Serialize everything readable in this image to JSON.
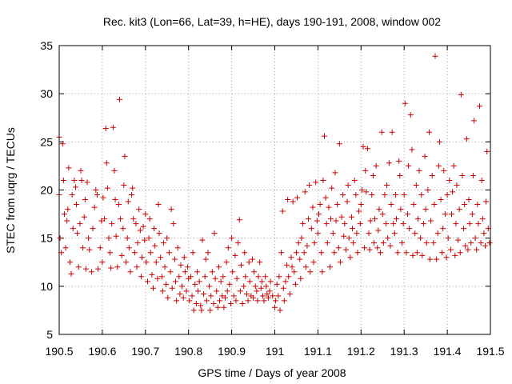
{
  "chart_data": {
    "type": "scatter",
    "title": "Rec. kit3 (Lon=66, Lat=39, h=HE), days 190-191, 2008, window 002",
    "xlabel": "GPS time / Days of year 2008",
    "ylabel": "STEC from uqrg / TECUs",
    "xlim": [
      190.5,
      191.5
    ],
    "ylim": [
      5,
      35
    ],
    "xticks": [
      "190.5",
      "190.6",
      "190.7",
      "190.8",
      "190.9",
      "191",
      "191.1",
      "191.2",
      "191.3",
      "191.4",
      "191.5"
    ],
    "yticks": [
      "5",
      "10",
      "15",
      "20",
      "25",
      "30",
      "35"
    ],
    "grid": true,
    "marker": "plus",
    "color": "#cc0000",
    "points": [
      [
        190.5,
        19.5
      ],
      [
        190.5,
        25.5
      ],
      [
        190.502,
        15.0
      ],
      [
        190.505,
        13.5
      ],
      [
        190.508,
        24.8
      ],
      [
        190.51,
        21.0
      ],
      [
        190.512,
        17.5
      ],
      [
        190.515,
        14.0
      ],
      [
        190.518,
        16.8
      ],
      [
        190.52,
        18.0
      ],
      [
        190.522,
        22.3
      ],
      [
        190.525,
        12.5
      ],
      [
        190.528,
        11.3
      ],
      [
        190.53,
        19.5
      ],
      [
        190.532,
        16.0
      ],
      [
        190.535,
        21.0
      ],
      [
        190.538,
        20.3
      ],
      [
        190.54,
        18.5
      ],
      [
        190.542,
        15.5
      ],
      [
        190.545,
        12.0
      ],
      [
        190.548,
        16.5
      ],
      [
        190.55,
        22.0
      ],
      [
        190.552,
        21.0
      ],
      [
        190.555,
        14.0
      ],
      [
        190.558,
        17.2
      ],
      [
        190.56,
        19.0
      ],
      [
        190.562,
        11.8
      ],
      [
        190.565,
        20.8
      ],
      [
        190.568,
        15.0
      ],
      [
        190.57,
        13.8
      ],
      [
        190.575,
        11.5
      ],
      [
        190.578,
        16.0
      ],
      [
        190.582,
        18.2
      ],
      [
        190.585,
        20.0
      ],
      [
        190.588,
        19.5
      ],
      [
        190.59,
        11.8
      ],
      [
        190.595,
        14.0
      ],
      [
        190.598,
        16.8
      ],
      [
        190.6,
        12.5
      ],
      [
        190.602,
        19.2
      ],
      [
        190.605,
        17.0
      ],
      [
        190.608,
        26.4
      ],
      [
        190.61,
        22.8
      ],
      [
        190.612,
        20.2
      ],
      [
        190.615,
        15.0
      ],
      [
        190.618,
        13.5
      ],
      [
        190.62,
        11.9
      ],
      [
        190.622,
        16.5
      ],
      [
        190.625,
        26.5
      ],
      [
        190.628,
        22.0
      ],
      [
        190.63,
        19.0
      ],
      [
        190.632,
        15.2
      ],
      [
        190.635,
        12.0
      ],
      [
        190.638,
        18.5
      ],
      [
        190.64,
        29.4
      ],
      [
        190.642,
        17.0
      ],
      [
        190.645,
        13.2
      ],
      [
        190.648,
        16.0
      ],
      [
        190.65,
        20.5
      ],
      [
        190.652,
        23.5
      ],
      [
        190.655,
        12.5
      ],
      [
        190.658,
        15.0
      ],
      [
        190.66,
        18.8
      ],
      [
        190.662,
        14.0
      ],
      [
        190.665,
        11.5
      ],
      [
        190.668,
        19.5
      ],
      [
        190.67,
        20.2
      ],
      [
        190.672,
        17.0
      ],
      [
        190.675,
        13.5
      ],
      [
        190.678,
        16.5
      ],
      [
        190.68,
        12.0
      ],
      [
        190.682,
        14.5
      ],
      [
        190.685,
        18.0
      ],
      [
        190.688,
        15.8
      ],
      [
        190.69,
        11.0
      ],
      [
        190.692,
        13.0
      ],
      [
        190.695,
        16.2
      ],
      [
        190.698,
        14.8
      ],
      [
        190.7,
        17.5
      ],
      [
        190.702,
        12.5
      ],
      [
        190.705,
        10.5
      ],
      [
        190.708,
        15.0
      ],
      [
        190.71,
        17.0
      ],
      [
        190.712,
        13.5
      ],
      [
        190.715,
        11.2
      ],
      [
        190.718,
        9.8
      ],
      [
        190.72,
        16.0
      ],
      [
        190.722,
        14.2
      ],
      [
        190.725,
        12.5
      ],
      [
        190.728,
        10.8
      ],
      [
        190.73,
        18.5
      ],
      [
        190.732,
        15.5
      ],
      [
        190.735,
        13.0
      ],
      [
        190.738,
        11.0
      ],
      [
        190.74,
        9.5
      ],
      [
        190.742,
        14.5
      ],
      [
        190.745,
        12.0
      ],
      [
        190.748,
        10.2
      ],
      [
        190.75,
        15.0
      ],
      [
        190.752,
        8.8
      ],
      [
        190.755,
        13.5
      ],
      [
        190.758,
        11.5
      ],
      [
        190.76,
        18.0
      ],
      [
        190.762,
        9.8
      ],
      [
        190.765,
        16.5
      ],
      [
        190.768,
        12.8
      ],
      [
        190.77,
        10.5
      ],
      [
        190.772,
        8.5
      ],
      [
        190.775,
        14.0
      ],
      [
        190.778,
        11.0
      ],
      [
        190.78,
        9.2
      ],
      [
        190.782,
        12.2
      ],
      [
        190.785,
        10.0
      ],
      [
        190.788,
        8.8
      ],
      [
        190.79,
        13.0
      ],
      [
        190.792,
        11.5
      ],
      [
        190.795,
        9.5
      ],
      [
        190.798,
        12.0
      ],
      [
        190.8,
        10.8
      ],
      [
        190.802,
        8.5
      ],
      [
        190.805,
        11.0
      ],
      [
        190.808,
        9.0
      ],
      [
        190.81,
        13.5
      ],
      [
        190.812,
        7.5
      ],
      [
        190.815,
        10.2
      ],
      [
        190.818,
        8.2
      ],
      [
        190.82,
        11.5
      ],
      [
        190.822,
        9.5
      ],
      [
        190.825,
        10.5
      ],
      [
        190.828,
        8.0
      ],
      [
        190.83,
        7.5
      ],
      [
        190.832,
        14.8
      ],
      [
        190.835,
        9.2
      ],
      [
        190.838,
        11.0
      ],
      [
        190.84,
        12.8
      ],
      [
        190.842,
        8.5
      ],
      [
        190.845,
        13.5
      ],
      [
        190.848,
        10.0
      ],
      [
        190.85,
        7.5
      ],
      [
        190.852,
        9.0
      ],
      [
        190.855,
        11.5
      ],
      [
        190.858,
        8.2
      ],
      [
        190.86,
        15.5
      ],
      [
        190.862,
        10.8
      ],
      [
        190.865,
        9.5
      ],
      [
        190.868,
        7.8
      ],
      [
        190.87,
        12.0
      ],
      [
        190.872,
        8.5
      ],
      [
        190.875,
        10.5
      ],
      [
        190.878,
        9.0
      ],
      [
        190.88,
        11.0
      ],
      [
        190.882,
        7.8
      ],
      [
        190.885,
        8.8
      ],
      [
        190.888,
        12.5
      ],
      [
        190.89,
        9.5
      ],
      [
        190.892,
        14.0
      ],
      [
        190.895,
        10.2
      ],
      [
        190.898,
        8.2
      ],
      [
        190.9,
        15.0
      ],
      [
        190.902,
        11.5
      ],
      [
        190.905,
        9.0
      ],
      [
        190.908,
        13.2
      ],
      [
        190.91,
        8.5
      ],
      [
        190.912,
        10.8
      ],
      [
        190.915,
        14.5
      ],
      [
        190.918,
        16.9
      ],
      [
        190.92,
        9.5
      ],
      [
        190.922,
        12.2
      ],
      [
        190.925,
        8.2
      ],
      [
        190.928,
        10.0
      ],
      [
        190.93,
        13.5
      ],
      [
        190.932,
        11.0
      ],
      [
        190.935,
        9.2
      ],
      [
        190.938,
        8.5
      ],
      [
        190.94,
        12.5
      ],
      [
        190.942,
        10.5
      ],
      [
        190.945,
        9.0
      ],
      [
        190.948,
        12.8
      ],
      [
        190.95,
        8.8
      ],
      [
        190.952,
        11.5
      ],
      [
        190.955,
        10.0
      ],
      [
        190.958,
        9.5
      ],
      [
        190.96,
        8.5
      ],
      [
        190.962,
        11.0
      ],
      [
        190.965,
        12.5
      ],
      [
        190.968,
        9.8
      ],
      [
        190.97,
        10.5
      ],
      [
        190.972,
        9.0
      ],
      [
        190.975,
        8.5
      ],
      [
        190.978,
        11.0
      ],
      [
        190.98,
        10.0
      ],
      [
        190.982,
        9.2
      ],
      [
        190.985,
        8.8
      ],
      [
        190.988,
        9.5
      ],
      [
        190.99,
        10.5
      ],
      [
        190.995,
        9.0
      ],
      [
        191.0,
        7.8
      ],
      [
        191.002,
        8.5
      ],
      [
        191.005,
        10.2
      ],
      [
        191.008,
        9.0
      ],
      [
        191.01,
        11.0
      ],
      [
        191.012,
        7.5
      ],
      [
        191.015,
        13.5
      ],
      [
        191.018,
        17.8
      ],
      [
        191.02,
        9.8
      ],
      [
        191.022,
        8.5
      ],
      [
        191.025,
        10.5
      ],
      [
        191.028,
        12.2
      ],
      [
        191.03,
        19.0
      ],
      [
        191.032,
        11.0
      ],
      [
        191.035,
        9.2
      ],
      [
        191.038,
        13.0
      ],
      [
        191.04,
        12.0
      ],
      [
        191.042,
        18.8
      ],
      [
        191.045,
        11.5
      ],
      [
        191.048,
        10.2
      ],
      [
        191.05,
        13.5
      ],
      [
        191.052,
        19.2
      ],
      [
        191.055,
        14.5
      ],
      [
        191.058,
        12.8
      ],
      [
        191.06,
        10.8
      ],
      [
        191.062,
        15.0
      ],
      [
        191.065,
        16.5
      ],
      [
        191.068,
        13.5
      ],
      [
        191.07,
        19.8
      ],
      [
        191.072,
        12.0
      ],
      [
        191.075,
        14.2
      ],
      [
        191.078,
        17.0
      ],
      [
        191.08,
        20.5
      ],
      [
        191.082,
        11.5
      ],
      [
        191.085,
        16.0
      ],
      [
        191.088,
        18.2
      ],
      [
        191.09,
        12.5
      ],
      [
        191.092,
        14.5
      ],
      [
        191.095,
        20.8
      ],
      [
        191.098,
        16.8
      ],
      [
        191.1,
        15.5
      ],
      [
        191.102,
        17.5
      ],
      [
        191.105,
        18.5
      ],
      [
        191.108,
        13.5
      ],
      [
        191.11,
        11.5
      ],
      [
        191.112,
        21.0
      ],
      [
        191.115,
        25.6
      ],
      [
        191.118,
        19.2
      ],
      [
        191.12,
        16.5
      ],
      [
        191.122,
        14.5
      ],
      [
        191.125,
        18.2
      ],
      [
        191.128,
        12.0
      ],
      [
        191.13,
        17.0
      ],
      [
        191.132,
        20.2
      ],
      [
        191.135,
        15.5
      ],
      [
        191.138,
        13.5
      ],
      [
        191.14,
        21.8
      ],
      [
        191.142,
        16.8
      ],
      [
        191.145,
        18.5
      ],
      [
        191.148,
        14.0
      ],
      [
        191.15,
        24.8
      ],
      [
        191.152,
        12.5
      ],
      [
        191.155,
        17.2
      ],
      [
        191.158,
        19.5
      ],
      [
        191.16,
        15.2
      ],
      [
        191.162,
        16.5
      ],
      [
        191.165,
        13.8
      ],
      [
        191.168,
        18.8
      ],
      [
        191.17,
        20.5
      ],
      [
        191.172,
        15.0
      ],
      [
        191.175,
        13.0
      ],
      [
        191.178,
        17.2
      ],
      [
        191.18,
        16.0
      ],
      [
        191.182,
        14.5
      ],
      [
        191.185,
        21.0
      ],
      [
        191.188,
        19.5
      ],
      [
        191.19,
        15.5
      ],
      [
        191.192,
        13.5
      ],
      [
        191.195,
        17.8
      ],
      [
        191.198,
        16.5
      ],
      [
        191.2,
        18.5
      ],
      [
        191.202,
        20.0
      ],
      [
        191.205,
        24.5
      ],
      [
        191.208,
        14.0
      ],
      [
        191.21,
        22.0
      ],
      [
        191.212,
        19.8
      ],
      [
        191.215,
        24.3
      ],
      [
        191.218,
        15.5
      ],
      [
        191.22,
        13.8
      ],
      [
        191.222,
        16.8
      ],
      [
        191.225,
        19.5
      ],
      [
        191.228,
        21.5
      ],
      [
        191.23,
        14.5
      ],
      [
        191.232,
        17.0
      ],
      [
        191.235,
        22.5
      ],
      [
        191.238,
        14.0
      ],
      [
        191.24,
        15.8
      ],
      [
        191.242,
        18.0
      ],
      [
        191.245,
        13.5
      ],
      [
        191.248,
        26.0
      ],
      [
        191.25,
        17.5
      ],
      [
        191.252,
        14.5
      ],
      [
        191.255,
        19.5
      ],
      [
        191.258,
        16.5
      ],
      [
        191.26,
        20.5
      ],
      [
        191.262,
        15.0
      ],
      [
        191.265,
        22.8
      ],
      [
        191.268,
        14.2
      ],
      [
        191.27,
        18.5
      ],
      [
        191.272,
        26.0
      ],
      [
        191.275,
        16.5
      ],
      [
        191.278,
        15.5
      ],
      [
        191.28,
        19.5
      ],
      [
        191.282,
        17.0
      ],
      [
        191.285,
        13.5
      ],
      [
        191.288,
        23.0
      ],
      [
        191.29,
        21.5
      ],
      [
        191.292,
        18.0
      ],
      [
        191.295,
        14.5
      ],
      [
        191.298,
        16.5
      ],
      [
        191.3,
        19.5
      ],
      [
        191.302,
        29.0
      ],
      [
        191.305,
        13.5
      ],
      [
        191.308,
        17.5
      ],
      [
        191.31,
        22.5
      ],
      [
        191.312,
        16.0
      ],
      [
        191.315,
        27.8
      ],
      [
        191.318,
        24.2
      ],
      [
        191.32,
        13.2
      ],
      [
        191.322,
        18.5
      ],
      [
        191.325,
        15.5
      ],
      [
        191.328,
        20.5
      ],
      [
        191.33,
        13.5
      ],
      [
        191.332,
        17.0
      ],
      [
        191.335,
        22.0
      ],
      [
        191.338,
        15.0
      ],
      [
        191.34,
        19.5
      ],
      [
        191.342,
        13.2
      ],
      [
        191.345,
        16.5
      ],
      [
        191.348,
        23.5
      ],
      [
        191.35,
        18.0
      ],
      [
        191.352,
        14.5
      ],
      [
        191.355,
        20.0
      ],
      [
        191.358,
        26.0
      ],
      [
        191.36,
        12.8
      ],
      [
        191.362,
        16.8
      ],
      [
        191.365,
        21.5
      ],
      [
        191.368,
        14.5
      ],
      [
        191.37,
        18.5
      ],
      [
        191.372,
        33.9
      ],
      [
        191.375,
        12.8
      ],
      [
        191.378,
        15.5
      ],
      [
        191.38,
        22.5
      ],
      [
        191.382,
        25.0
      ],
      [
        191.385,
        19.0
      ],
      [
        191.388,
        13.5
      ],
      [
        191.39,
        16.0
      ],
      [
        191.392,
        22.0
      ],
      [
        191.395,
        17.5
      ],
      [
        191.398,
        13.0
      ],
      [
        191.4,
        19.5
      ],
      [
        191.402,
        15.0
      ],
      [
        191.405,
        21.0
      ],
      [
        191.408,
        13.8
      ],
      [
        191.41,
        17.5
      ],
      [
        191.412,
        19.8
      ],
      [
        191.415,
        22.5
      ],
      [
        191.418,
        13.2
      ],
      [
        191.42,
        16.5
      ],
      [
        191.422,
        20.5
      ],
      [
        191.425,
        14.8
      ],
      [
        191.428,
        18.0
      ],
      [
        191.43,
        13.5
      ],
      [
        191.432,
        29.9
      ],
      [
        191.435,
        21.5
      ],
      [
        191.438,
        16.0
      ],
      [
        191.44,
        18.5
      ],
      [
        191.442,
        14.2
      ],
      [
        191.445,
        25.3
      ],
      [
        191.448,
        13.8
      ],
      [
        191.45,
        19.0
      ],
      [
        191.452,
        16.5
      ],
      [
        191.455,
        14.5
      ],
      [
        191.458,
        17.5
      ],
      [
        191.46,
        21.5
      ],
      [
        191.462,
        27.2
      ],
      [
        191.465,
        15.0
      ],
      [
        191.468,
        13.8
      ],
      [
        191.47,
        18.5
      ],
      [
        191.472,
        16.5
      ],
      [
        191.475,
        28.7
      ],
      [
        191.478,
        14.5
      ],
      [
        191.48,
        21.0
      ],
      [
        191.482,
        17.0
      ],
      [
        191.485,
        15.5
      ],
      [
        191.488,
        14.2
      ],
      [
        191.49,
        18.8
      ],
      [
        191.492,
        24.0
      ],
      [
        191.495,
        16.0
      ],
      [
        191.498,
        14.5
      ]
    ]
  }
}
